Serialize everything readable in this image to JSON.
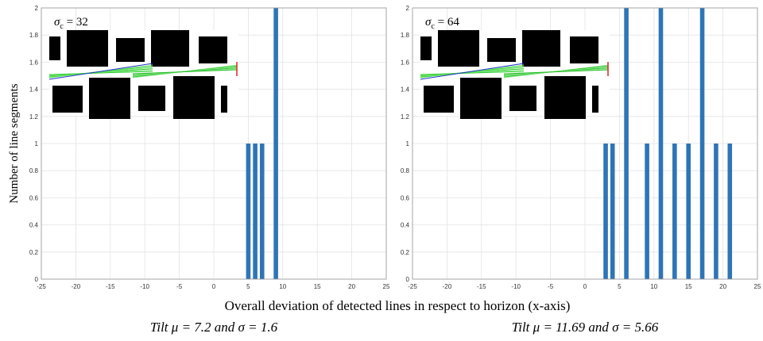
{
  "figure": {
    "xlabel": "Overall deviation of detected lines in respect to horizon (x-axis)",
    "ylabel": "Number of line segments"
  },
  "chart_data": [
    {
      "type": "bar",
      "x": [
        5,
        6,
        7,
        9
      ],
      "values": [
        1,
        1,
        1,
        2
      ],
      "color": "#2e75b6",
      "xlim": [
        -25,
        25
      ],
      "xticks": [
        -25,
        -20,
        -15,
        -10,
        -5,
        0,
        5,
        10,
        15,
        20,
        25
      ],
      "ylim": [
        0,
        2
      ],
      "yticks": [
        0,
        0.2,
        0.4,
        0.6,
        0.8,
        1,
        1.2,
        1.4,
        1.6,
        1.8,
        2
      ],
      "grid": true,
      "annotation": {
        "symbol": "σ",
        "subscript": "c",
        "text": " = 32"
      },
      "caption": "Tilt μ = 7.2 and σ = 1.6"
    },
    {
      "type": "bar",
      "x": [
        3,
        4,
        6,
        9,
        11,
        13,
        15,
        17,
        19,
        21
      ],
      "values": [
        1,
        1,
        2,
        1,
        2,
        1,
        1,
        2,
        1,
        1
      ],
      "color": "#2e75b6",
      "xlim": [
        -25,
        25
      ],
      "xticks": [
        -25,
        -20,
        -15,
        -10,
        -5,
        0,
        5,
        10,
        15,
        20,
        25
      ],
      "ylim": [
        0,
        2
      ],
      "yticks": [
        0,
        0.2,
        0.4,
        0.6,
        0.8,
        1,
        1.2,
        1.4,
        1.6,
        1.8,
        2
      ],
      "grid": true,
      "annotation": {
        "symbol": "σ",
        "subscript": "c",
        "text": " = 64"
      },
      "caption": "Tilt μ = 11.69 and σ = 5.66"
    }
  ]
}
